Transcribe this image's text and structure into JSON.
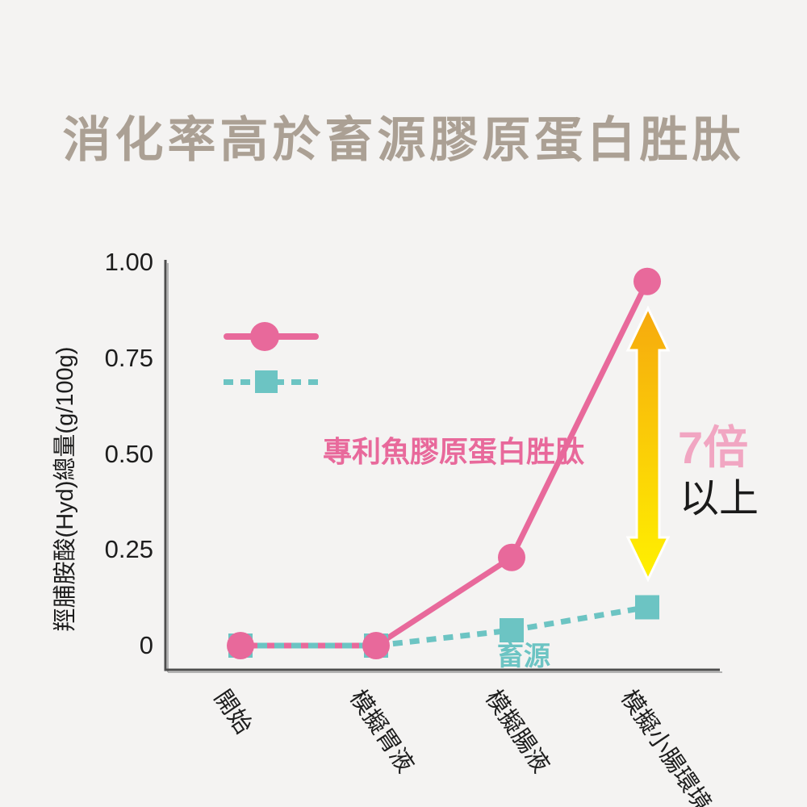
{
  "title": "消化率高於畜源膠原蛋白胜肽",
  "colors": {
    "background": "#F4F3F2",
    "title": "#ABA094",
    "pink": "#E8699B",
    "pink_light": "#F1A6C2",
    "teal": "#6CC4C3",
    "arrow_gradient_top": "#F6A90E",
    "arrow_gradient_bottom": "#FFF100",
    "axis": "#4D4D4D",
    "axis_shadow": "#B2B2B2",
    "text": "#1D1D1D"
  },
  "chart_data": {
    "type": "line",
    "title": "消化率高於畜源膠原蛋白胜肽",
    "categories": [
      "開始",
      "模擬胃液",
      "模擬腸液",
      "模擬小腸環境"
    ],
    "series": [
      {
        "name": "專利魚膠原蛋白胜肽",
        "values": [
          0,
          0,
          0.23,
          0.95
        ],
        "color": "#E8699B",
        "marker": "circle",
        "line_style": "solid"
      },
      {
        "name": "畜源",
        "values": [
          0,
          0,
          0.04,
          0.1
        ],
        "color": "#6CC4C3",
        "marker": "square",
        "line_style": "dashed"
      }
    ],
    "xlabel": "",
    "ylabel": "羥脯胺酸(Hyd)總量(g/100g)",
    "yticks": [
      0,
      0.25,
      0.5,
      0.75,
      1.0
    ],
    "ytick_labels": [
      "0",
      "0.25",
      "0.50",
      "0.75",
      "1.00"
    ],
    "ylim": [
      0,
      1.0
    ],
    "grid": false,
    "legend_position": "upper-left-inside",
    "annotation": {
      "multiplier": "7倍",
      "multiplier_suffix": "以上",
      "arrow": "vertical-double-headed-yellow-gradient"
    }
  },
  "annotations": {
    "series1_label": "專利魚膠原蛋白胜肽",
    "series2_label": "畜源",
    "multiplier": "7倍",
    "multiplier_suffix": "以上"
  }
}
